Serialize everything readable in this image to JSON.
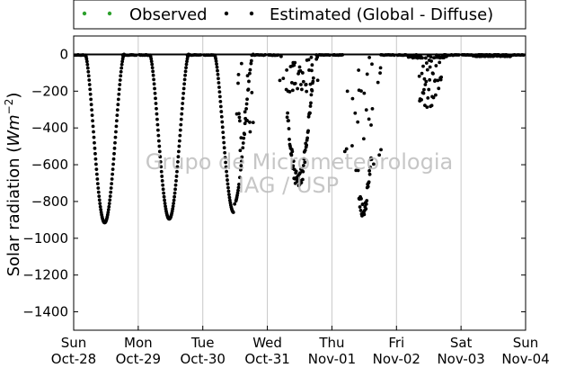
{
  "chart_data": {
    "type": "scatter",
    "ylabel_text": "Solar radiation (",
    "ylabel_unit": "Wm",
    "ylabel_exp": "−2",
    "ylabel_close": ")",
    "ylim": [
      -1500,
      100
    ],
    "xlim": [
      0,
      7
    ],
    "y_ticks": [
      0,
      -200,
      -400,
      -600,
      -800,
      -1000,
      -1200,
      -1400
    ],
    "x_ticks": [
      {
        "x": 0,
        "day": "Sun",
        "date": "Oct-28"
      },
      {
        "x": 1,
        "day": "Mon",
        "date": "Oct-29"
      },
      {
        "x": 2,
        "day": "Tue",
        "date": "Oct-30"
      },
      {
        "x": 3,
        "day": "Wed",
        "date": "Oct-31"
      },
      {
        "x": 4,
        "day": "Thu",
        "date": "Nov-01"
      },
      {
        "x": 5,
        "day": "Fri",
        "date": "Nov-02"
      },
      {
        "x": 6,
        "day": "Sat",
        "date": "Nov-03"
      },
      {
        "x": 7,
        "day": "Sun",
        "date": "Nov-04"
      }
    ],
    "grid": "vertical",
    "legend_position": "top",
    "series": [
      {
        "name": "Observed",
        "color": "#2ca02c",
        "marker": "dot"
      },
      {
        "name": "Estimated (Global - Diffuse)",
        "color": "#000000",
        "marker": "dot"
      }
    ],
    "days": [
      {
        "day_index": 0,
        "peak_min": -915,
        "noon_offset": 0.5,
        "kind": "clear"
      },
      {
        "day_index": 1,
        "peak_min": -895,
        "noon_offset": 0.5,
        "kind": "clear"
      },
      {
        "day_index": 2,
        "peak_min": -860,
        "noon_offset": 0.5,
        "kind": "partly"
      },
      {
        "day_index": 3,
        "peak_min": -755,
        "noon_offset": 0.5,
        "kind": "cloudy"
      },
      {
        "day_index": 4,
        "peak_min": -885,
        "noon_offset": 0.5,
        "kind": "broken"
      },
      {
        "day_index": 5,
        "peak_min": -310,
        "noon_offset": 0.5,
        "kind": "overcast"
      },
      {
        "day_index": 6,
        "peak_min": -15,
        "noon_offset": 0.5,
        "kind": "none"
      }
    ],
    "watermark_line1": "Grupo de Micrometeorologia",
    "watermark_line2": "IAG / USP"
  }
}
